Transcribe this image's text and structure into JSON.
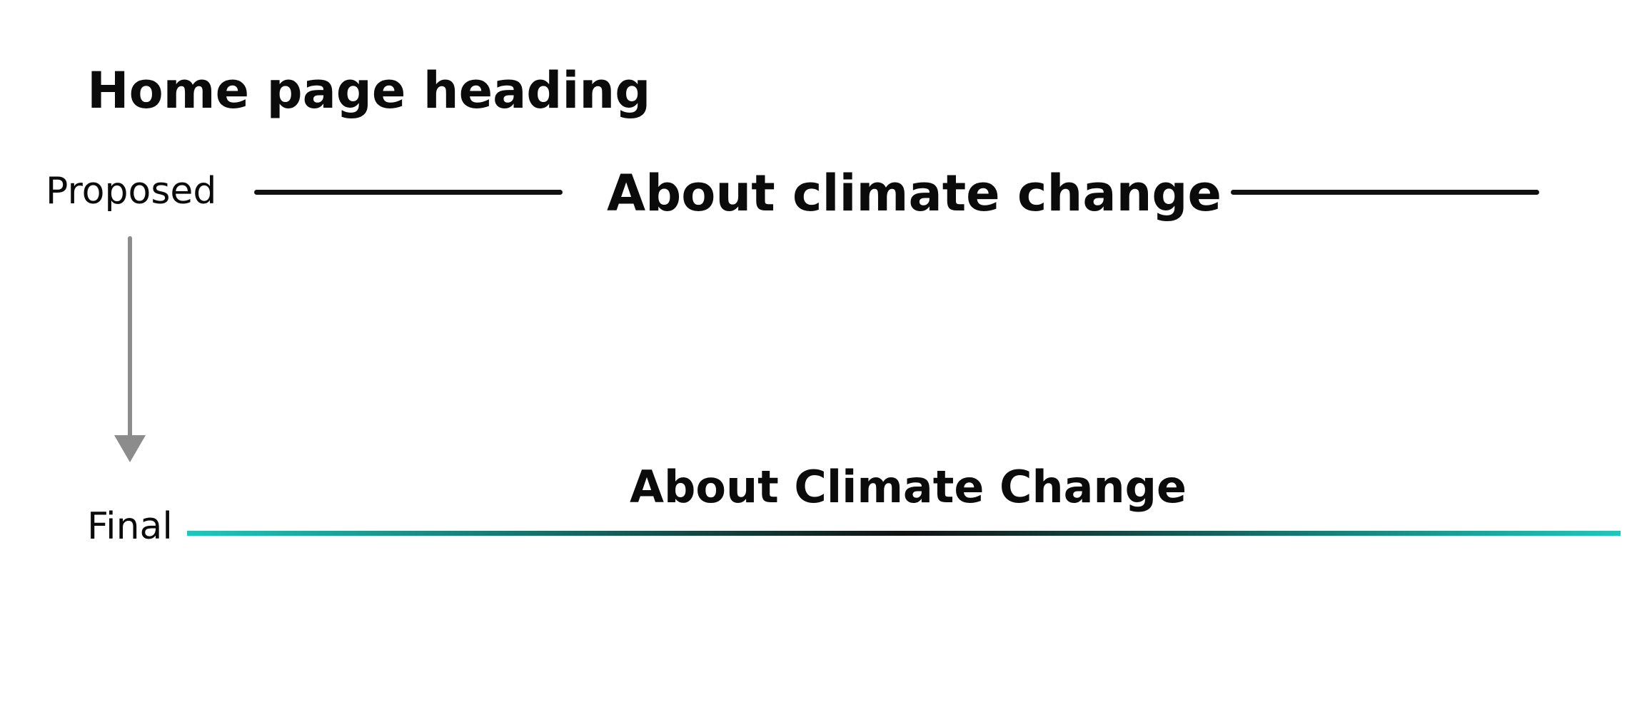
{
  "title": "Home page heading",
  "proposed": {
    "label": "Proposed",
    "heading": "About climate change"
  },
  "final": {
    "label": "Final",
    "heading": "About Climate Change"
  },
  "colors": {
    "text": "#0b0b0b",
    "rule": "#111111",
    "arrow": "#8c8c8c",
    "accent_teal": "#1fc7bd"
  }
}
